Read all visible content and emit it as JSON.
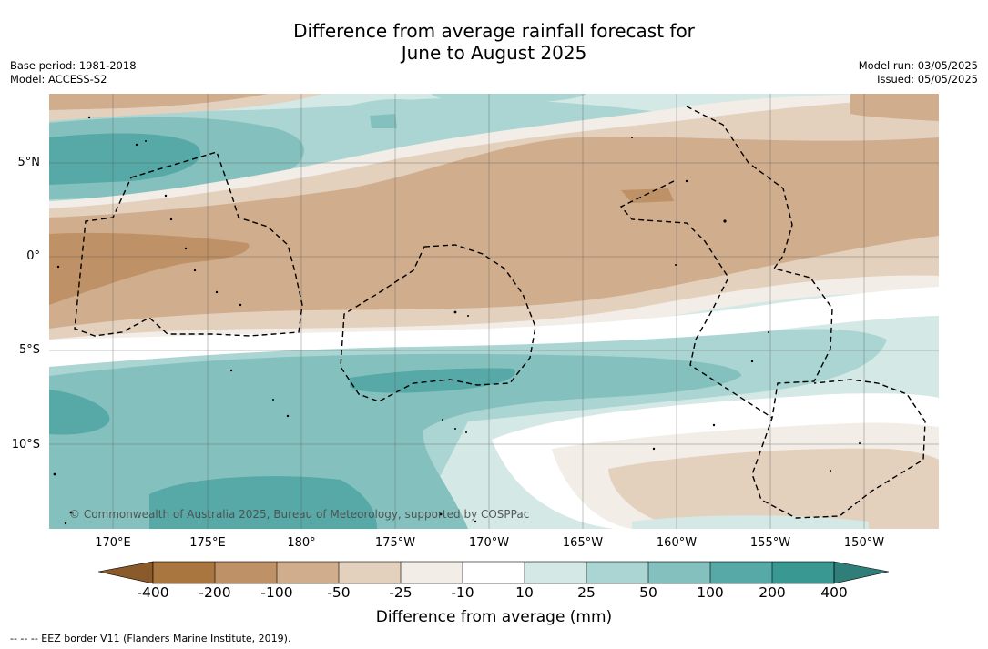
{
  "title": {
    "line1": "Difference from average rainfall forecast for",
    "line2": "June to August 2025"
  },
  "meta_left": {
    "base_period": "Base period: 1981-2018",
    "model": "Model: ACCESS-S2"
  },
  "meta_right": {
    "model_run": "Model run: 03/05/2025",
    "issued": "Issued: 05/05/2025"
  },
  "map": {
    "lat_labels": [
      "5°N",
      "0°",
      "5°S",
      "10°S"
    ],
    "lon_labels": [
      "170°E",
      "175°E",
      "180°",
      "175°W",
      "170°W",
      "165°W",
      "160°W",
      "155°W",
      "150°W"
    ],
    "copyright": "© Commonwealth of Australia 2025, Bureau of Meteorology, supported by COSPPac",
    "border_style": "dashed black EEZ boundaries",
    "land_features": "small islands drawn as black specks"
  },
  "colorbar": {
    "tick_labels": [
      "-400",
      "-200",
      "-100",
      "-50",
      "-25",
      "-10",
      "10",
      "25",
      "50",
      "100",
      "200",
      "400"
    ],
    "colors": [
      "#a8763e",
      "#be9166",
      "#d0ad8d",
      "#e3d0bd",
      "#f2ede6",
      "#ffffff",
      "#d4e8e6",
      "#aad5d2",
      "#84c1be",
      "#56a9a6",
      "#3a9893",
      "#2f7e7a",
      "#8b5a2b"
    ],
    "label": "Difference from average (mm)"
  },
  "legend_note": "--  --  -- EEZ border V11 (Flanders Marine Institute, 2019)."
}
